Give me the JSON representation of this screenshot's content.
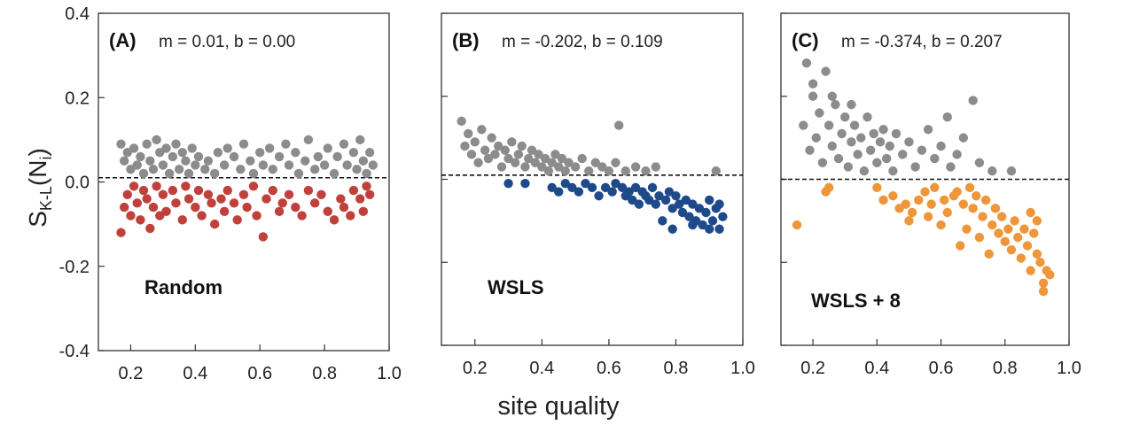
{
  "figure": {
    "xlabel": "site quality",
    "ylabel_main": "S",
    "ylabel_sub": "K-L",
    "ylabel_tail": "(N",
    "ylabel_tail_sub": "i",
    "ylabel_close": ")"
  },
  "chart_data": [
    {
      "type": "scatter",
      "panel_label": "(A)",
      "annotation": "m =  0.01, b = 0.00",
      "name_label": "Random",
      "xlim": [
        0.1,
        1.0
      ],
      "ylim": [
        -0.4,
        0.4
      ],
      "yticks": [
        "0.4",
        "0.2",
        "0.0",
        "-0.2",
        "-0.4"
      ],
      "xticks": [
        "0.2",
        "0.4",
        "0.6",
        "0.8",
        "1.0"
      ],
      "reference_line_y": 0.01,
      "upper_color": "#8c8c8c",
      "lower_color": "#c0413c",
      "upper_points": [
        [
          0.17,
          0.09
        ],
        [
          0.18,
          0.05
        ],
        [
          0.19,
          0.07
        ],
        [
          0.2,
          0.03
        ],
        [
          0.21,
          0.08
        ],
        [
          0.22,
          0.04
        ],
        [
          0.23,
          0.06
        ],
        [
          0.24,
          0.02
        ],
        [
          0.25,
          0.09
        ],
        [
          0.26,
          0.05
        ],
        [
          0.27,
          0.03
        ],
        [
          0.28,
          0.1
        ],
        [
          0.29,
          0.07
        ],
        [
          0.3,
          0.04
        ],
        [
          0.31,
          0.08
        ],
        [
          0.32,
          0.02
        ],
        [
          0.33,
          0.06
        ],
        [
          0.34,
          0.09
        ],
        [
          0.35,
          0.03
        ],
        [
          0.36,
          0.07
        ],
        [
          0.37,
          0.05
        ],
        [
          0.38,
          0.02
        ],
        [
          0.39,
          0.08
        ],
        [
          0.4,
          0.04
        ],
        [
          0.41,
          0.06
        ],
        [
          0.43,
          0.03
        ],
        [
          0.44,
          0.05
        ],
        [
          0.46,
          0.02
        ],
        [
          0.47,
          0.07
        ],
        [
          0.49,
          0.04
        ],
        [
          0.5,
          0.08
        ],
        [
          0.52,
          0.06
        ],
        [
          0.54,
          0.03
        ],
        [
          0.55,
          0.09
        ],
        [
          0.57,
          0.05
        ],
        [
          0.58,
          0.02
        ],
        [
          0.6,
          0.07
        ],
        [
          0.61,
          0.04
        ],
        [
          0.63,
          0.08
        ],
        [
          0.64,
          0.03
        ],
        [
          0.66,
          0.06
        ],
        [
          0.68,
          0.09
        ],
        [
          0.69,
          0.04
        ],
        [
          0.71,
          0.07
        ],
        [
          0.72,
          0.02
        ],
        [
          0.74,
          0.05
        ],
        [
          0.75,
          0.1
        ],
        [
          0.77,
          0.03
        ],
        [
          0.78,
          0.06
        ],
        [
          0.8,
          0.04
        ],
        [
          0.81,
          0.08
        ],
        [
          0.83,
          0.02
        ],
        [
          0.84,
          0.06
        ],
        [
          0.86,
          0.09
        ],
        [
          0.87,
          0.04
        ],
        [
          0.89,
          0.07
        ],
        [
          0.9,
          0.03
        ],
        [
          0.91,
          0.1
        ],
        [
          0.92,
          0.05
        ],
        [
          0.93,
          0.02
        ],
        [
          0.94,
          0.07
        ],
        [
          0.95,
          0.04
        ]
      ],
      "lower_points": [
        [
          0.17,
          -0.12
        ],
        [
          0.18,
          -0.06
        ],
        [
          0.19,
          -0.03
        ],
        [
          0.2,
          -0.08
        ],
        [
          0.21,
          -0.01
        ],
        [
          0.22,
          -0.05
        ],
        [
          0.23,
          -0.09
        ],
        [
          0.24,
          -0.02
        ],
        [
          0.25,
          -0.04
        ],
        [
          0.26,
          -0.11
        ],
        [
          0.27,
          -0.06
        ],
        [
          0.28,
          -0.01
        ],
        [
          0.29,
          -0.08
        ],
        [
          0.3,
          -0.03
        ],
        [
          0.31,
          -0.07
        ],
        [
          0.33,
          -0.02
        ],
        [
          0.34,
          -0.05
        ],
        [
          0.36,
          -0.09
        ],
        [
          0.37,
          -0.01
        ],
        [
          0.38,
          -0.04
        ],
        [
          0.4,
          -0.06
        ],
        [
          0.41,
          -0.02
        ],
        [
          0.42,
          -0.08
        ],
        [
          0.44,
          -0.03
        ],
        [
          0.45,
          -0.05
        ],
        [
          0.46,
          -0.1
        ],
        [
          0.48,
          -0.04
        ],
        [
          0.49,
          -0.07
        ],
        [
          0.5,
          -0.02
        ],
        [
          0.52,
          -0.05
        ],
        [
          0.53,
          -0.09
        ],
        [
          0.55,
          -0.03
        ],
        [
          0.56,
          -0.06
        ],
        [
          0.58,
          -0.01
        ],
        [
          0.59,
          -0.08
        ],
        [
          0.61,
          -0.13
        ],
        [
          0.62,
          -0.04
        ],
        [
          0.64,
          -0.02
        ],
        [
          0.66,
          -0.07
        ],
        [
          0.67,
          -0.05
        ],
        [
          0.69,
          -0.03
        ],
        [
          0.71,
          -0.06
        ],
        [
          0.73,
          -0.08
        ],
        [
          0.75,
          -0.02
        ],
        [
          0.77,
          -0.05
        ],
        [
          0.79,
          -0.03
        ],
        [
          0.81,
          -0.07
        ],
        [
          0.83,
          -0.09
        ],
        [
          0.85,
          -0.04
        ],
        [
          0.86,
          -0.06
        ],
        [
          0.88,
          -0.08
        ],
        [
          0.89,
          -0.02
        ],
        [
          0.91,
          -0.04
        ],
        [
          0.92,
          -0.07
        ],
        [
          0.93,
          -0.01
        ],
        [
          0.94,
          -0.03
        ]
      ]
    },
    {
      "type": "scatter",
      "panel_label": "(B)",
      "annotation": "m =  -0.202, b = 0.109",
      "name_label": "WSLS",
      "xlim": [
        0.1,
        1.0
      ],
      "ylim": [
        -0.4,
        0.4
      ],
      "xticks": [
        "0.2",
        "0.4",
        "0.6",
        "0.8",
        "1.0"
      ],
      "reference_line_y": 0.01,
      "upper_color": "#8c8c8c",
      "lower_color": "#1f4a8a",
      "upper_points": [
        [
          0.16,
          0.14
        ],
        [
          0.17,
          0.08
        ],
        [
          0.18,
          0.11
        ],
        [
          0.19,
          0.06
        ],
        [
          0.2,
          0.09
        ],
        [
          0.21,
          0.04
        ],
        [
          0.22,
          0.12
        ],
        [
          0.23,
          0.07
        ],
        [
          0.24,
          0.05
        ],
        [
          0.25,
          0.1
        ],
        [
          0.26,
          0.06
        ],
        [
          0.27,
          0.08
        ],
        [
          0.28,
          0.03
        ],
        [
          0.29,
          0.07
        ],
        [
          0.3,
          0.05
        ],
        [
          0.31,
          0.09
        ],
        [
          0.32,
          0.04
        ],
        [
          0.33,
          0.06
        ],
        [
          0.34,
          0.08
        ],
        [
          0.35,
          0.03
        ],
        [
          0.36,
          0.05
        ],
        [
          0.37,
          0.07
        ],
        [
          0.38,
          0.04
        ],
        [
          0.39,
          0.06
        ],
        [
          0.4,
          0.03
        ],
        [
          0.41,
          0.05
        ],
        [
          0.42,
          0.02
        ],
        [
          0.43,
          0.04
        ],
        [
          0.44,
          0.06
        ],
        [
          0.45,
          0.03
        ],
        [
          0.46,
          0.05
        ],
        [
          0.47,
          0.02
        ],
        [
          0.48,
          0.04
        ],
        [
          0.5,
          0.03
        ],
        [
          0.52,
          0.05
        ],
        [
          0.54,
          0.02
        ],
        [
          0.56,
          0.04
        ],
        [
          0.58,
          0.03
        ],
        [
          0.6,
          0.02
        ],
        [
          0.62,
          0.04
        ],
        [
          0.63,
          0.13
        ],
        [
          0.65,
          0.02
        ],
        [
          0.68,
          0.03
        ],
        [
          0.71,
          0.02
        ],
        [
          0.74,
          0.03
        ],
        [
          0.92,
          0.02
        ]
      ],
      "lower_points": [
        [
          0.3,
          -0.01
        ],
        [
          0.35,
          -0.01
        ],
        [
          0.43,
          -0.02
        ],
        [
          0.45,
          -0.03
        ],
        [
          0.47,
          -0.01
        ],
        [
          0.49,
          -0.02
        ],
        [
          0.51,
          -0.03
        ],
        [
          0.53,
          -0.01
        ],
        [
          0.55,
          -0.02
        ],
        [
          0.57,
          -0.04
        ],
        [
          0.59,
          -0.02
        ],
        [
          0.61,
          -0.03
        ],
        [
          0.62,
          -0.01
        ],
        [
          0.64,
          -0.02
        ],
        [
          0.65,
          -0.04
        ],
        [
          0.66,
          -0.03
        ],
        [
          0.67,
          -0.05
        ],
        [
          0.68,
          -0.02
        ],
        [
          0.69,
          -0.06
        ],
        [
          0.7,
          -0.03
        ],
        [
          0.71,
          -0.04
        ],
        [
          0.72,
          -0.05
        ],
        [
          0.73,
          -0.02
        ],
        [
          0.74,
          -0.06
        ],
        [
          0.75,
          -0.04
        ],
        [
          0.76,
          -0.1
        ],
        [
          0.77,
          -0.05
        ],
        [
          0.78,
          -0.03
        ],
        [
          0.79,
          -0.07
        ],
        [
          0.8,
          -0.04
        ],
        [
          0.81,
          -0.06
        ],
        [
          0.82,
          -0.08
        ],
        [
          0.83,
          -0.05
        ],
        [
          0.84,
          -0.09
        ],
        [
          0.85,
          -0.06
        ],
        [
          0.86,
          -0.1
        ],
        [
          0.87,
          -0.07
        ],
        [
          0.88,
          -0.11
        ],
        [
          0.89,
          -0.08
        ],
        [
          0.9,
          -0.05
        ],
        [
          0.91,
          -0.1
        ],
        [
          0.92,
          -0.07
        ],
        [
          0.93,
          -0.12
        ],
        [
          0.94,
          -0.09
        ],
        [
          0.79,
          -0.12
        ],
        [
          0.85,
          -0.11
        ],
        [
          0.9,
          -0.12
        ],
        [
          0.93,
          -0.06
        ]
      ]
    },
    {
      "type": "scatter",
      "panel_label": "(C)",
      "annotation": "m =  -0.374, b = 0.207",
      "name_label": "WSLS + 8",
      "xlim": [
        0.1,
        1.0
      ],
      "ylim": [
        -0.4,
        0.4
      ],
      "xticks": [
        "0.2",
        "0.4",
        "0.6",
        "0.8",
        "1.0"
      ],
      "reference_line_y": 0.0,
      "upper_color": "#8c8c8c",
      "lower_color": "#f0963a",
      "upper_points": [
        [
          0.17,
          0.13
        ],
        [
          0.18,
          0.28
        ],
        [
          0.19,
          0.07
        ],
        [
          0.2,
          0.2
        ],
        [
          0.21,
          0.1
        ],
        [
          0.22,
          0.16
        ],
        [
          0.23,
          0.04
        ],
        [
          0.24,
          0.26
        ],
        [
          0.25,
          0.13
        ],
        [
          0.26,
          0.08
        ],
        [
          0.27,
          0.18
        ],
        [
          0.28,
          0.05
        ],
        [
          0.29,
          0.11
        ],
        [
          0.3,
          0.15
        ],
        [
          0.31,
          0.03
        ],
        [
          0.32,
          0.09
        ],
        [
          0.33,
          0.13
        ],
        [
          0.34,
          0.06
        ],
        [
          0.35,
          0.1
        ],
        [
          0.36,
          0.02
        ],
        [
          0.37,
          0.15
        ],
        [
          0.38,
          0.07
        ],
        [
          0.39,
          0.11
        ],
        [
          0.4,
          0.04
        ],
        [
          0.41,
          0.09
        ],
        [
          0.42,
          0.12
        ],
        [
          0.43,
          0.05
        ],
        [
          0.44,
          0.08
        ],
        [
          0.45,
          0.02
        ],
        [
          0.46,
          0.11
        ],
        [
          0.48,
          0.06
        ],
        [
          0.5,
          0.09
        ],
        [
          0.52,
          0.03
        ],
        [
          0.54,
          0.07
        ],
        [
          0.56,
          0.12
        ],
        [
          0.58,
          0.05
        ],
        [
          0.6,
          0.08
        ],
        [
          0.62,
          0.15
        ],
        [
          0.63,
          0.03
        ],
        [
          0.65,
          0.06
        ],
        [
          0.67,
          0.1
        ],
        [
          0.7,
          0.19
        ],
        [
          0.72,
          0.04
        ],
        [
          0.76,
          0.02
        ],
        [
          0.82,
          0.02
        ],
        [
          0.2,
          0.23
        ],
        [
          0.26,
          0.2
        ],
        [
          0.32,
          0.18
        ]
      ],
      "lower_points": [
        [
          0.15,
          -0.11
        ],
        [
          0.24,
          -0.03
        ],
        [
          0.25,
          -0.02
        ],
        [
          0.4,
          -0.02
        ],
        [
          0.42,
          -0.05
        ],
        [
          0.45,
          -0.04
        ],
        [
          0.47,
          -0.07
        ],
        [
          0.49,
          -0.06
        ],
        [
          0.5,
          -0.1
        ],
        [
          0.51,
          -0.08
        ],
        [
          0.53,
          -0.05
        ],
        [
          0.55,
          -0.03
        ],
        [
          0.56,
          -0.09
        ],
        [
          0.57,
          -0.06
        ],
        [
          0.58,
          -0.02
        ],
        [
          0.6,
          -0.11
        ],
        [
          0.61,
          -0.05
        ],
        [
          0.62,
          -0.08
        ],
        [
          0.64,
          -0.04
        ],
        [
          0.65,
          -0.03
        ],
        [
          0.66,
          -0.16
        ],
        [
          0.67,
          -0.06
        ],
        [
          0.68,
          -0.12
        ],
        [
          0.69,
          -0.02
        ],
        [
          0.7,
          -0.07
        ],
        [
          0.71,
          -0.04
        ],
        [
          0.72,
          -0.14
        ],
        [
          0.73,
          -0.09
        ],
        [
          0.74,
          -0.05
        ],
        [
          0.75,
          -0.18
        ],
        [
          0.76,
          -0.11
        ],
        [
          0.77,
          -0.07
        ],
        [
          0.78,
          -0.13
        ],
        [
          0.79,
          -0.09
        ],
        [
          0.8,
          -0.15
        ],
        [
          0.81,
          -0.12
        ],
        [
          0.82,
          -0.17
        ],
        [
          0.83,
          -0.1
        ],
        [
          0.84,
          -0.14
        ],
        [
          0.85,
          -0.19
        ],
        [
          0.86,
          -0.12
        ],
        [
          0.87,
          -0.16
        ],
        [
          0.88,
          -0.22
        ],
        [
          0.89,
          -0.13
        ],
        [
          0.9,
          -0.18
        ],
        [
          0.91,
          -0.2
        ],
        [
          0.92,
          -0.25
        ],
        [
          0.93,
          -0.22
        ],
        [
          0.94,
          -0.23
        ],
        [
          0.92,
          -0.27
        ],
        [
          0.9,
          -0.1
        ],
        [
          0.88,
          -0.08
        ]
      ]
    }
  ]
}
